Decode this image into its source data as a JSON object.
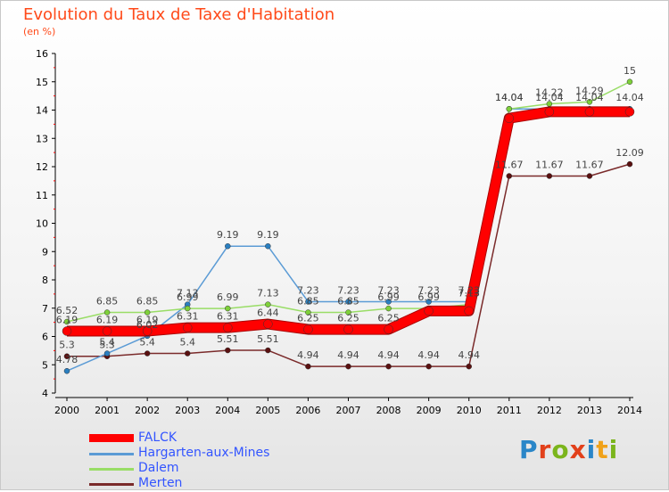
{
  "title": "Evolution du Taux de Taxe d'Habitation",
  "subtitle": "(en %)",
  "logo": {
    "text": "Proxiti",
    "colors": [
      "#2a86c8",
      "#e2401a",
      "#7bb51c",
      "#e2401a",
      "#2a86c8",
      "#f0a21a",
      "#7bb51c"
    ]
  },
  "chart_data": {
    "type": "line",
    "x": [
      "2000",
      "2001",
      "2002",
      "2003",
      "2004",
      "2005",
      "2006",
      "2007",
      "2008",
      "2009",
      "2010",
      "2011",
      "2012",
      "2013",
      "2014"
    ],
    "ylim": [
      4,
      16
    ],
    "yticks": [
      "4",
      "5",
      "6",
      "7",
      "8",
      "9",
      "10",
      "11",
      "12",
      "13",
      "14",
      "15",
      "16"
    ],
    "grid": false,
    "legend_position": "bottom-left",
    "series": [
      {
        "name": "FALCK",
        "color": "#ff0000",
        "values": [
          6.19,
          6.19,
          6.19,
          6.31,
          6.31,
          6.44,
          6.25,
          6.25,
          6.25,
          6.9,
          6.9,
          13.71,
          13.94,
          13.94,
          13.94
        ],
        "labels": [
          "6.19",
          "6.19",
          "6.19",
          "6.31",
          "6.31",
          "6.44",
          "6.25",
          "6.25",
          "6.25",
          "",
          "",
          "",
          "",
          "",
          ""
        ]
      },
      {
        "name": "Hargarten-aux-Mines",
        "color": "#5b9bd5",
        "values": [
          4.78,
          5.4,
          6.02,
          7.13,
          9.19,
          9.19,
          7.23,
          7.23,
          7.23,
          7.23,
          7.23,
          14.04,
          14.04,
          14.04,
          14.04
        ],
        "labels": [
          "4.78",
          "5.4",
          "6.02",
          "7.13",
          "9.19",
          "9.19",
          "7.23",
          "7.23",
          "7.23",
          "7.23",
          "7.23",
          "14.04",
          "14.04",
          "14.04",
          "14.04"
        ]
      },
      {
        "name": "Dalem",
        "color": "#99dd66",
        "values": [
          6.52,
          6.85,
          6.85,
          6.99,
          6.99,
          7.13,
          6.85,
          6.85,
          6.99,
          6.99,
          7.13,
          14.04,
          14.22,
          14.29,
          15
        ],
        "labels": [
          "6.52",
          "6.85",
          "6.85",
          "6.99",
          "6.99",
          "7.13",
          "6.85",
          "6.85",
          "6.99",
          "6.99",
          "7.13",
          "14.04",
          "14.22",
          "14.29",
          "15"
        ]
      },
      {
        "name": "Merten",
        "color": "#7a2a2a",
        "values": [
          5.3,
          5.3,
          5.4,
          5.4,
          5.51,
          5.51,
          4.94,
          4.94,
          4.94,
          4.94,
          4.94,
          11.67,
          11.67,
          11.67,
          12.09
        ],
        "labels": [
          "5.3",
          "5.3",
          "5.4",
          "5.4",
          "5.51",
          "5.51",
          "4.94",
          "4.94",
          "4.94",
          "4.94",
          "4.94",
          "11.67",
          "11.67",
          "11.67",
          "12.09"
        ]
      }
    ]
  }
}
